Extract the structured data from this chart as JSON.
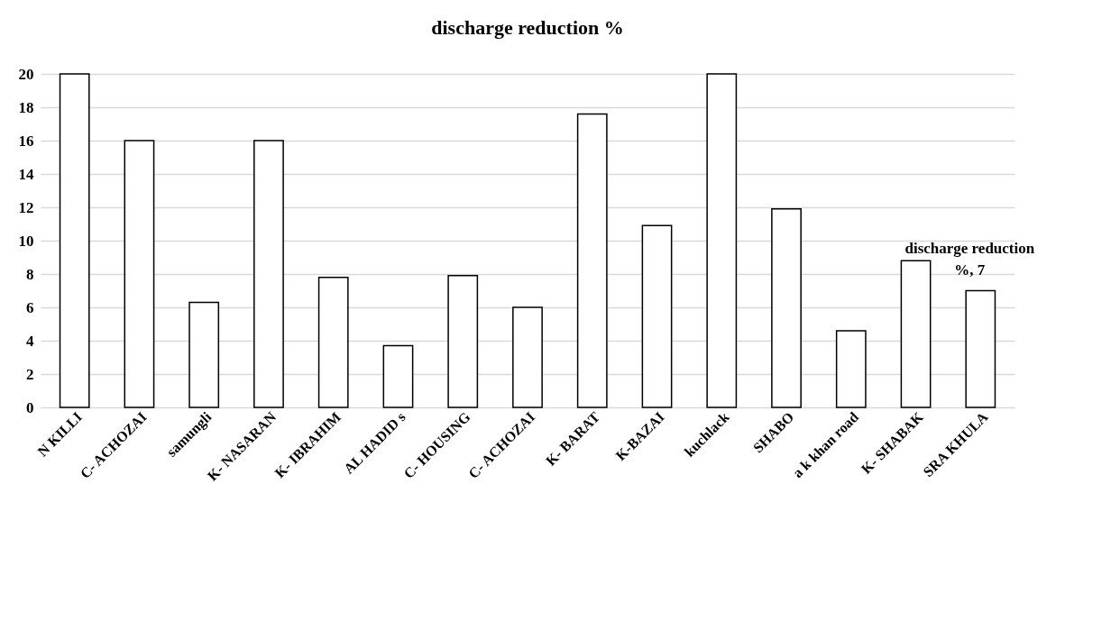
{
  "chart_data": {
    "type": "bar",
    "title": "discharge reduction %",
    "categories": [
      "N KILLI",
      "C- ACHOZAI",
      "samungli",
      "K- NASARAN",
      "K- IBRAHIM",
      "AL HADID s",
      "C- HOUSING",
      "C- ACHOZAI",
      "K- BARAT",
      "K-BAZAI",
      "kuchlack",
      "SHABO",
      "a k  khan road",
      "K- SHABAK",
      "SRA KHULA"
    ],
    "values": [
      20,
      16,
      6.3,
      16,
      7.8,
      3.7,
      7.9,
      6,
      17.6,
      10.9,
      20,
      11.9,
      4.6,
      8.8,
      7
    ],
    "value_labels": [
      null,
      null,
      null,
      null,
      null,
      null,
      null,
      null,
      null,
      null,
      null,
      null,
      null,
      null,
      "discharge reduction %, 7"
    ],
    "color": "#ffffff",
    "ylim": [
      0,
      20
    ],
    "yticks": [
      0,
      2,
      4,
      6,
      8,
      10,
      12,
      14,
      16,
      18,
      20
    ],
    "grid": "y"
  }
}
